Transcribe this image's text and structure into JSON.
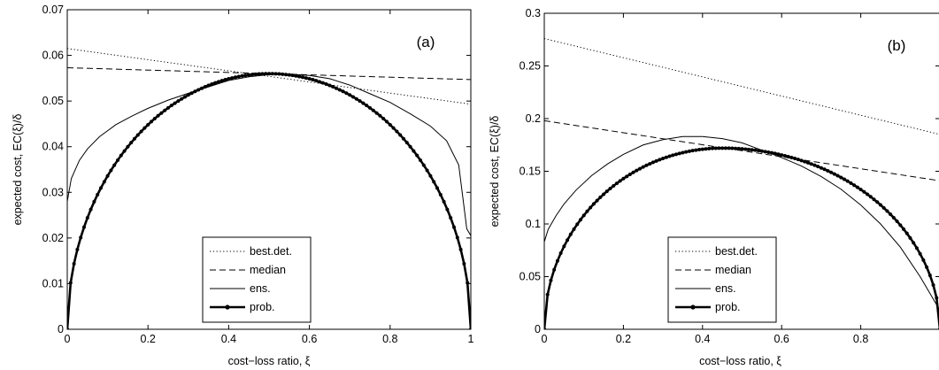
{
  "chart_data": [
    {
      "type": "line",
      "panel_tag": "(a)",
      "xlabel": "cost−loss ratio, ξ",
      "ylabel": "expected cost, EC(ξ)/δ",
      "xlim": [
        0,
        1
      ],
      "ylim": [
        0,
        0.07
      ],
      "xticks": [
        "0",
        "0.2",
        "0.4",
        "0.6",
        "0.8",
        "1"
      ],
      "yticks": [
        "0",
        "0.01",
        "0.02",
        "0.03",
        "0.04",
        "0.05",
        "0.06",
        "0.07"
      ],
      "grid": false,
      "legend_position": "bottom-center",
      "series": [
        {
          "name": "best.det.",
          "style": "dotted",
          "x": [
            0,
            1
          ],
          "y": [
            0.0615,
            0.0493
          ]
        },
        {
          "name": "median",
          "style": "dashed",
          "x": [
            0,
            1
          ],
          "y": [
            0.0573,
            0.0547
          ]
        },
        {
          "name": "ens.",
          "style": "solid-thin",
          "x": [
            0,
            0.01,
            0.03,
            0.05,
            0.08,
            0.12,
            0.16,
            0.2,
            0.25,
            0.3,
            0.35,
            0.4,
            0.45,
            0.5,
            0.55,
            0.6,
            0.65,
            0.7,
            0.75,
            0.8,
            0.85,
            0.9,
            0.94,
            0.97,
            0.98,
            0.99,
            1.0
          ],
          "y": [
            0.028,
            0.033,
            0.037,
            0.0395,
            0.0422,
            0.0448,
            0.0467,
            0.0484,
            0.0502,
            0.0517,
            0.0531,
            0.0545,
            0.0553,
            0.0558,
            0.0559,
            0.0556,
            0.0549,
            0.0535,
            0.0516,
            0.0497,
            0.0472,
            0.0445,
            0.0413,
            0.036,
            0.029,
            0.022,
            0.0205
          ]
        },
        {
          "name": "prob.",
          "style": "solid-thick-markers",
          "model": "ellipse",
          "peak_x": 0.5,
          "peak_y": 0.056
        }
      ]
    },
    {
      "type": "line",
      "panel_tag": "(b)",
      "xlabel": "cost−loss ratio, ξ",
      "ylabel": "expected cost, EC(ξ)/δ",
      "xlim": [
        0,
        1
      ],
      "ylim": [
        0,
        0.3
      ],
      "xticks": [
        "0",
        "0.2",
        "0.4",
        "0.6",
        "0.8"
      ],
      "yticks": [
        "0",
        "0.05",
        "0.1",
        "0.15",
        "0.2",
        "0.25",
        "0.3"
      ],
      "grid": false,
      "legend_position": "bottom-center",
      "series": [
        {
          "name": "best.det.",
          "style": "dotted",
          "x": [
            0,
            1
          ],
          "y": [
            0.276,
            0.185
          ]
        },
        {
          "name": "median",
          "style": "dashed",
          "x": [
            0,
            1
          ],
          "y": [
            0.198,
            0.141
          ]
        },
        {
          "name": "ens.",
          "style": "solid-thin",
          "x": [
            0,
            0.01,
            0.03,
            0.05,
            0.08,
            0.12,
            0.16,
            0.2,
            0.25,
            0.3,
            0.35,
            0.4,
            0.45,
            0.5,
            0.55,
            0.6,
            0.65,
            0.7,
            0.75,
            0.8,
            0.85,
            0.9,
            0.95,
            1.0
          ],
          "y": [
            0.083,
            0.095,
            0.108,
            0.119,
            0.132,
            0.146,
            0.157,
            0.166,
            0.175,
            0.18,
            0.183,
            0.183,
            0.181,
            0.177,
            0.17,
            0.163,
            0.155,
            0.145,
            0.133,
            0.118,
            0.1,
            0.078,
            0.05,
            0.018
          ]
        },
        {
          "name": "prob.",
          "style": "solid-thick-markers",
          "model": "ellipse",
          "peak_x": 0.45,
          "peak_y": 0.172
        }
      ]
    }
  ]
}
